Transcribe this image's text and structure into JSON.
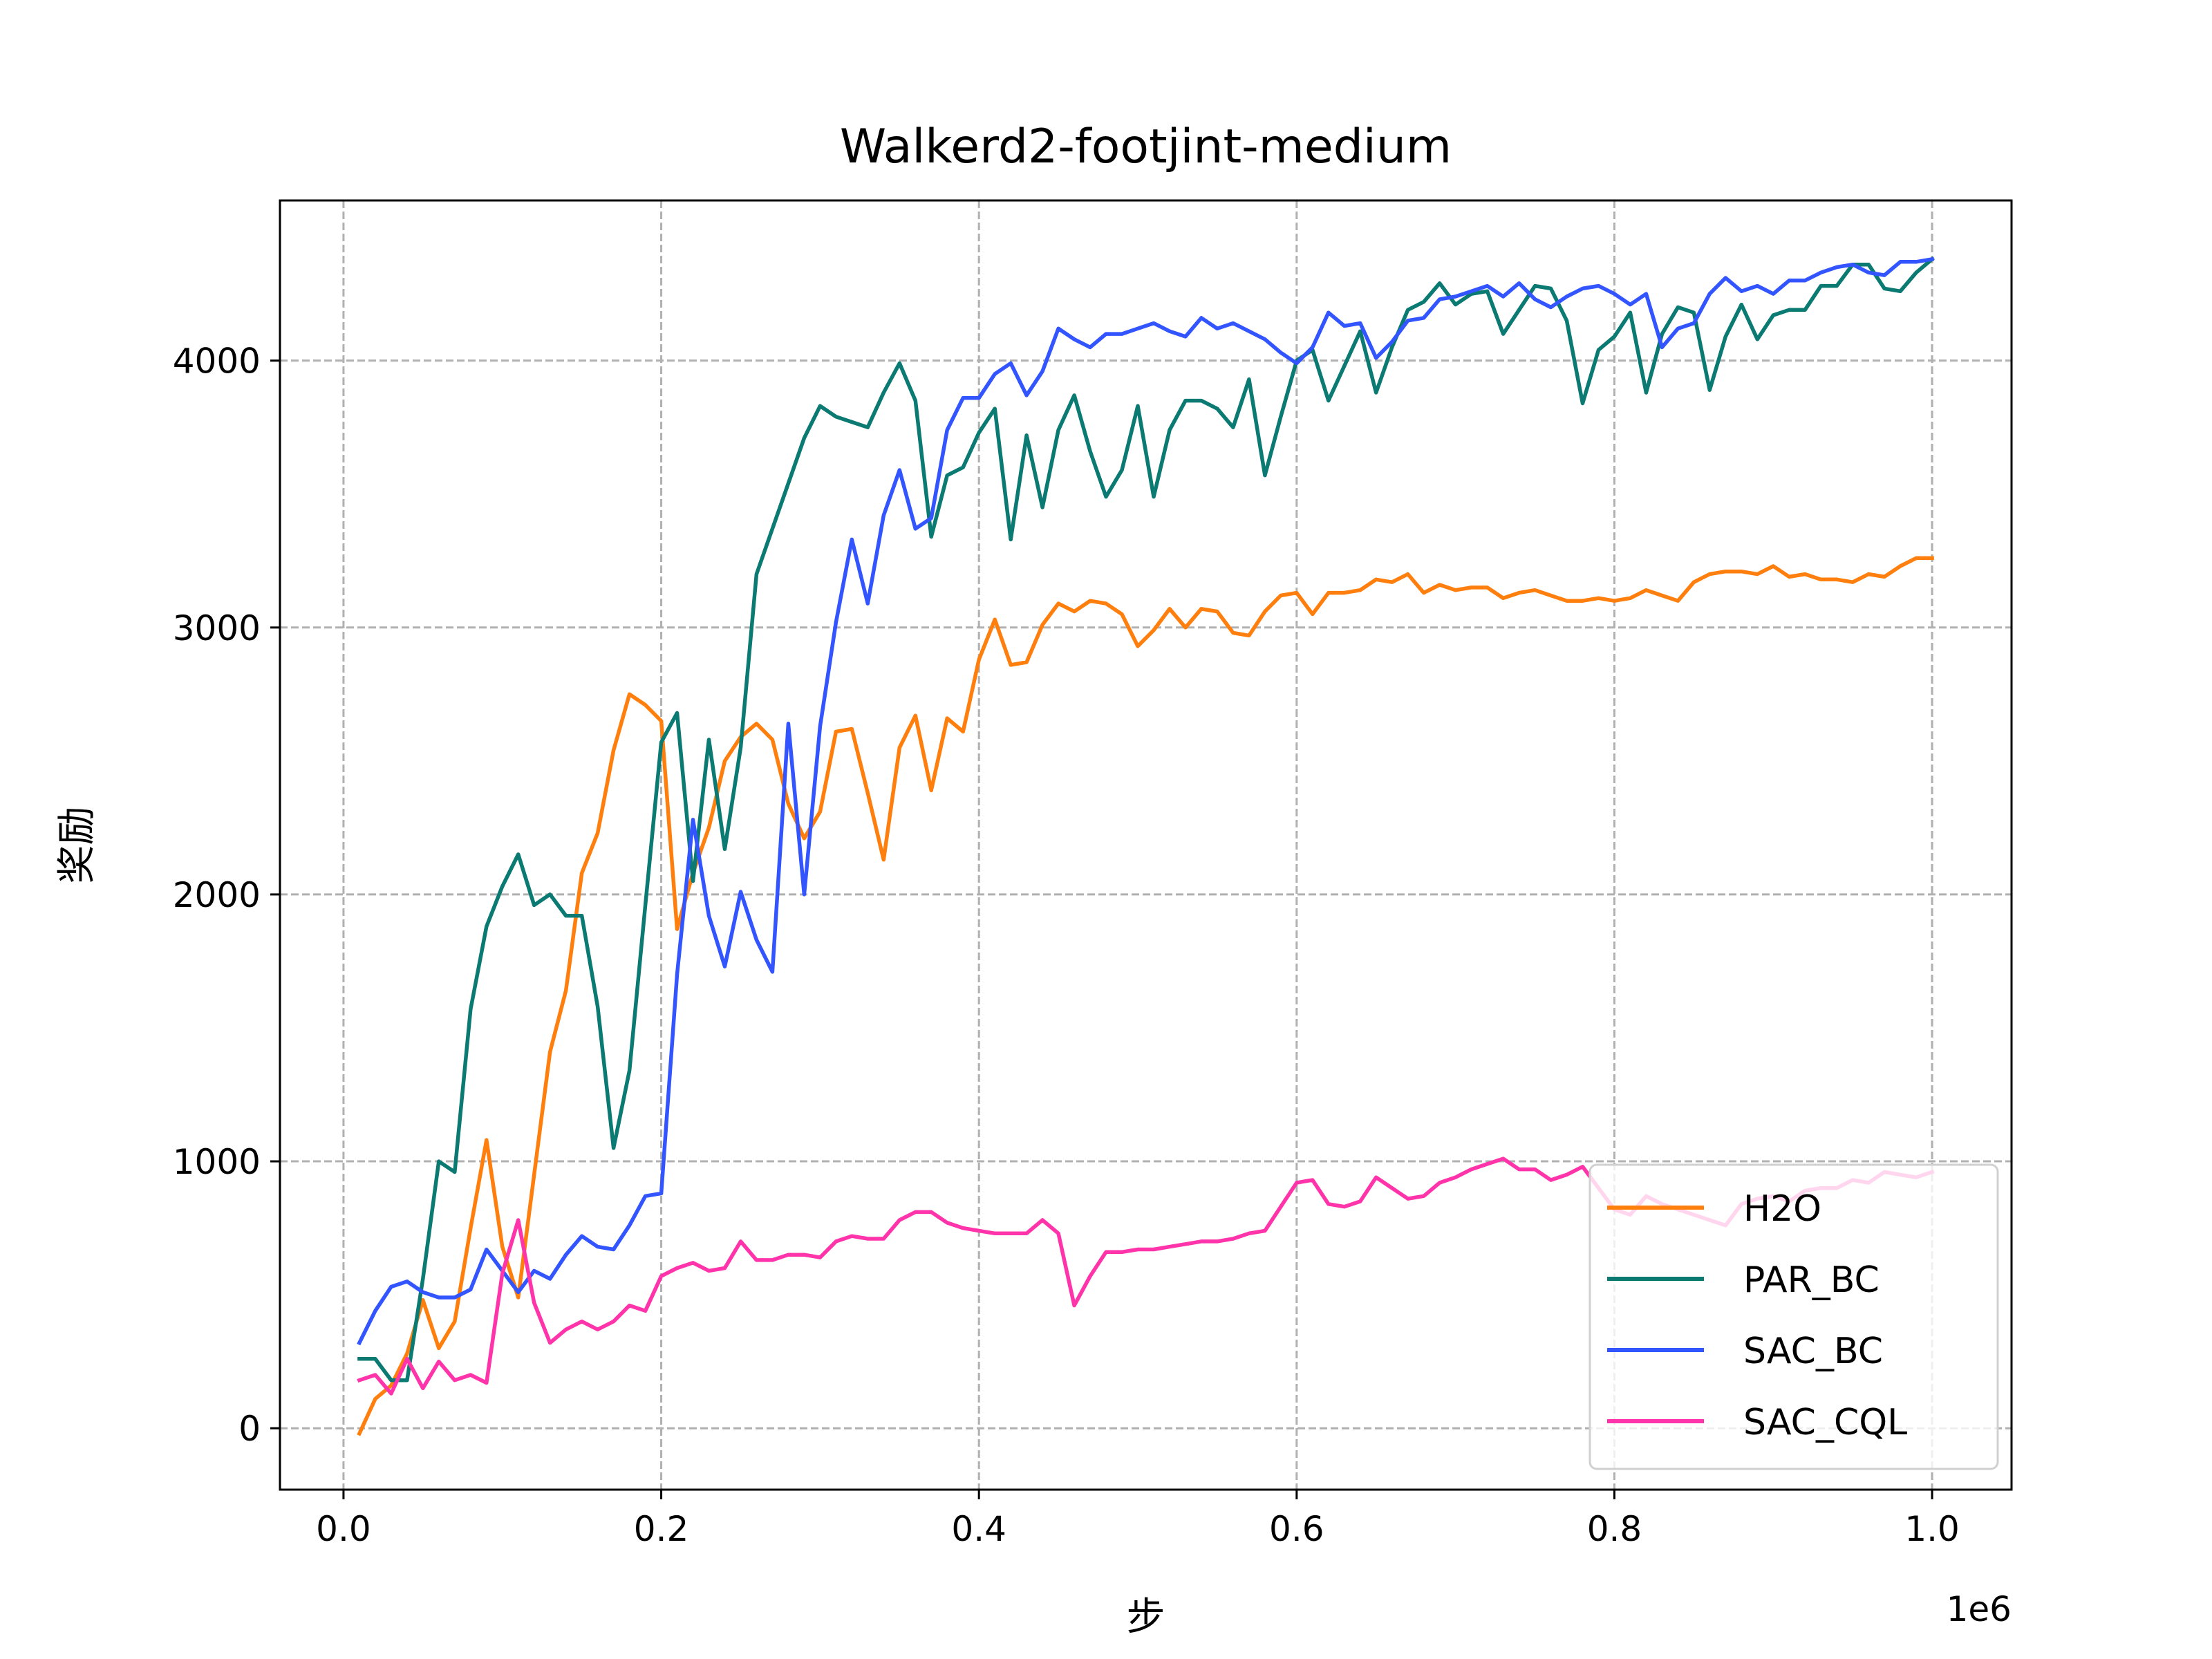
{
  "chart_data": {
    "type": "line",
    "title": "Walkerd2-footjint-medium",
    "xlabel": "步",
    "ylabel": "奖励",
    "x_offset_text": "1e6",
    "xlim": [
      -0.04,
      1.05
    ],
    "ylim": [
      -230,
      4600
    ],
    "x_ticks": [
      0.0,
      0.2,
      0.4,
      0.6,
      0.8,
      1.0
    ],
    "x_tick_labels": [
      "0.0",
      "0.2",
      "0.4",
      "0.6",
      "0.8",
      "1.0"
    ],
    "y_ticks": [
      0,
      1000,
      2000,
      3000,
      4000
    ],
    "y_tick_labels": [
      "0",
      "1000",
      "2000",
      "3000",
      "4000"
    ],
    "grid": true,
    "legend_position": "lower right",
    "x": [
      0.01,
      0.02,
      0.03,
      0.04,
      0.05,
      0.06,
      0.07,
      0.08,
      0.09,
      0.1,
      0.11,
      0.12,
      0.13,
      0.14,
      0.15,
      0.16,
      0.17,
      0.18,
      0.19,
      0.2,
      0.21,
      0.22,
      0.23,
      0.24,
      0.25,
      0.26,
      0.27,
      0.28,
      0.29,
      0.3,
      0.31,
      0.32,
      0.33,
      0.34,
      0.35,
      0.36,
      0.37,
      0.38,
      0.39,
      0.4,
      0.41,
      0.42,
      0.43,
      0.44,
      0.45,
      0.46,
      0.47,
      0.48,
      0.49,
      0.5,
      0.51,
      0.52,
      0.53,
      0.54,
      0.55,
      0.56,
      0.57,
      0.58,
      0.59,
      0.6,
      0.61,
      0.62,
      0.63,
      0.64,
      0.65,
      0.66,
      0.67,
      0.68,
      0.69,
      0.7,
      0.71,
      0.72,
      0.73,
      0.74,
      0.75,
      0.76,
      0.77,
      0.78,
      0.79,
      0.8,
      0.81,
      0.82,
      0.83,
      0.84,
      0.85,
      0.86,
      0.87,
      0.88,
      0.89,
      0.9,
      0.91,
      0.92,
      0.93,
      0.94,
      0.95,
      0.96,
      0.97,
      0.98,
      0.99,
      1.0
    ],
    "series": [
      {
        "name": "H2O",
        "color": "#ff7f0e",
        "values": [
          -20,
          110,
          160,
          280,
          480,
          300,
          400,
          750,
          1080,
          680,
          490,
          950,
          1410,
          1640,
          2080,
          2230,
          2540,
          2750,
          2710,
          2650,
          1870,
          2080,
          2250,
          2500,
          2590,
          2640,
          2580,
          2340,
          2210,
          2310,
          2610,
          2620,
          2380,
          2130,
          2550,
          2670,
          2390,
          2660,
          2610,
          2880,
          3030,
          2860,
          2870,
          3010,
          3090,
          3060,
          3100,
          3090,
          3050,
          2930,
          2990,
          3070,
          3000,
          3070,
          3060,
          2980,
          2970,
          3060,
          3120,
          3130,
          3050,
          3130,
          3130,
          3140,
          3180,
          3170,
          3200,
          3130,
          3160,
          3140,
          3150,
          3150,
          3110,
          3130,
          3140,
          3120,
          3100,
          3100,
          3110,
          3100,
          3110,
          3140,
          3120,
          3100,
          3170,
          3200,
          3210,
          3210,
          3200,
          3230,
          3190,
          3200,
          3180,
          3180,
          3170,
          3200,
          3190,
          3230,
          3260,
          3260
        ]
      },
      {
        "name": "PAR_BC",
        "color": "#0a7a72",
        "values": [
          260,
          260,
          180,
          180,
          560,
          1000,
          960,
          1570,
          1880,
          2030,
          2150,
          1960,
          2000,
          1920,
          1920,
          1580,
          1050,
          1340,
          1960,
          2570,
          2680,
          2050,
          2580,
          2170,
          2550,
          3200,
          3370,
          3540,
          3710,
          3830,
          3790,
          3770,
          3750,
          3880,
          3990,
          3850,
          3340,
          3570,
          3600,
          3730,
          3820,
          3330,
          3720,
          3450,
          3740,
          3870,
          3660,
          3490,
          3590,
          3830,
          3490,
          3740,
          3850,
          3850,
          3820,
          3750,
          3930,
          3570,
          3790,
          4000,
          4040,
          3850,
          3980,
          4110,
          3880,
          4050,
          4190,
          4220,
          4290,
          4210,
          4250,
          4260,
          4100,
          4190,
          4280,
          4270,
          4150,
          3840,
          4040,
          4090,
          4180,
          3880,
          4100,
          4200,
          4180,
          3890,
          4090,
          4210,
          4080,
          4170,
          4190,
          4190,
          4280,
          4280,
          4360,
          4360,
          4270,
          4260,
          4330,
          4380
        ]
      },
      {
        "name": "SAC_BC",
        "color": "#3355ff",
        "values": [
          320,
          440,
          530,
          550,
          510,
          490,
          490,
          520,
          670,
          590,
          510,
          590,
          560,
          650,
          720,
          680,
          670,
          760,
          870,
          880,
          1700,
          2280,
          1920,
          1730,
          2010,
          1830,
          1710,
          2640,
          2000,
          2630,
          3020,
          3330,
          3090,
          3420,
          3590,
          3370,
          3410,
          3740,
          3860,
          3860,
          3950,
          3990,
          3870,
          3960,
          4120,
          4080,
          4050,
          4100,
          4100,
          4120,
          4140,
          4110,
          4090,
          4160,
          4120,
          4140,
          4110,
          4080,
          4030,
          3990,
          4050,
          4180,
          4130,
          4140,
          4010,
          4070,
          4150,
          4160,
          4230,
          4240,
          4260,
          4280,
          4240,
          4290,
          4230,
          4200,
          4240,
          4270,
          4280,
          4250,
          4210,
          4250,
          4050,
          4120,
          4140,
          4250,
          4310,
          4260,
          4280,
          4250,
          4300,
          4300,
          4330,
          4350,
          4360,
          4330,
          4320,
          4370,
          4370,
          4380
        ]
      },
      {
        "name": "SAC_CQL",
        "color": "#ff33aa",
        "values": [
          180,
          200,
          130,
          260,
          150,
          250,
          180,
          200,
          170,
          580,
          780,
          470,
          320,
          370,
          400,
          370,
          400,
          460,
          440,
          570,
          600,
          620,
          590,
          600,
          700,
          630,
          630,
          650,
          650,
          640,
          700,
          720,
          710,
          710,
          780,
          810,
          810,
          770,
          750,
          740,
          730,
          730,
          730,
          780,
          730,
          460,
          570,
          660,
          660,
          670,
          670,
          680,
          690,
          700,
          700,
          710,
          730,
          740,
          830,
          920,
          930,
          840,
          830,
          850,
          940,
          900,
          860,
          870,
          920,
          940,
          970,
          990,
          1010,
          970,
          970,
          930,
          950,
          980,
          900,
          820,
          800,
          870,
          840,
          820,
          800,
          780,
          760,
          840,
          860,
          870,
          850,
          890,
          900,
          900,
          930,
          920,
          960,
          950,
          940,
          960
        ]
      }
    ]
  }
}
